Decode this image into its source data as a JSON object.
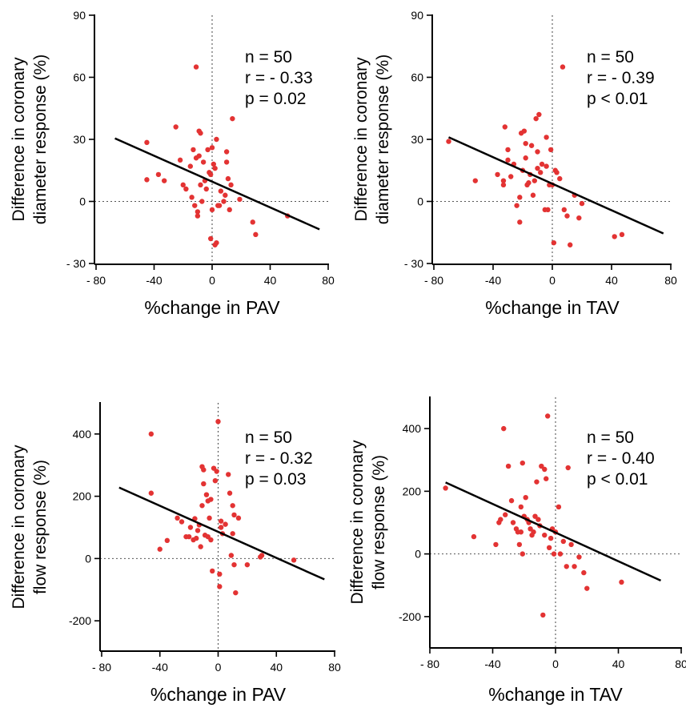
{
  "chart_data": [
    {
      "type": "scatter",
      "xlabel": "%change in PAV",
      "ylabel": [
        "Difference in coronary",
        "diameter response (%)"
      ],
      "xlim": [
        -80,
        80
      ],
      "ylim": [
        -30,
        90
      ],
      "xticks": [
        -80,
        -40,
        0,
        40,
        80
      ],
      "xtick_labels": [
        "- 80",
        "-40",
        "0",
        "40",
        "80"
      ],
      "yticks": [
        -30,
        0,
        30,
        60,
        90
      ],
      "ytick_labels": [
        "- 30",
        "0",
        "30",
        "60",
        "90"
      ],
      "stats": [
        "n = 50",
        "r = - 0.33",
        "p = 0.02"
      ],
      "fit": {
        "x": [
          -67,
          74
        ],
        "y": [
          30.5,
          -13.5
        ]
      },
      "x": [
        -45,
        -45,
        -37,
        -33,
        -25,
        -22,
        -20,
        -18,
        -15,
        -14,
        -13,
        -12,
        -11,
        -11,
        -10,
        -10,
        -9,
        -9,
        -8,
        -8,
        -7,
        -6,
        -5,
        -4,
        -3,
        -2,
        -1,
        0,
        0,
        1,
        2,
        2,
        3,
        3,
        4,
        5,
        6,
        8,
        9,
        10,
        10,
        11,
        12,
        13,
        14,
        19,
        28,
        30,
        52,
        -1
      ],
      "y": [
        28.5,
        10.5,
        13,
        10,
        36,
        20,
        8,
        6,
        17,
        2,
        25,
        -2,
        65,
        21,
        -5,
        -7,
        34,
        22,
        33,
        8,
        0,
        19,
        10,
        6,
        25,
        14,
        13,
        26,
        -4,
        18,
        16,
        -21,
        -20,
        30,
        -2,
        -2,
        5,
        0,
        3,
        24,
        19,
        11,
        -4,
        8,
        40,
        1,
        -10,
        -16,
        -7,
        -18
      ]
    },
    {
      "type": "scatter",
      "xlabel": "%change in TAV",
      "ylabel": [
        "Difference in coronary",
        "diameter response (%)"
      ],
      "xlim": [
        -80,
        80
      ],
      "ylim": [
        -30,
        90
      ],
      "xticks": [
        -80,
        -40,
        0,
        40,
        80
      ],
      "xtick_labels": [
        "- 80",
        "-40",
        "0",
        "40",
        "80"
      ],
      "yticks": [
        -30,
        0,
        30,
        60,
        90
      ],
      "ytick_labels": [
        "- 30",
        "0",
        "30",
        "60",
        "90"
      ],
      "stats": [
        "n = 50",
        "r = - 0.39",
        "p < 0.01"
      ],
      "fit": {
        "x": [
          -70,
          75
        ],
        "y": [
          31,
          -15.5
        ]
      },
      "x": [
        -70,
        -52,
        -37,
        -33,
        -33,
        -32,
        -30,
        -30,
        -28,
        -26,
        -24,
        -22,
        -22,
        -21,
        -20,
        -19,
        -18,
        -18,
        -17,
        -16,
        -15,
        -14,
        -13,
        -12,
        -11,
        -10,
        -10,
        -9,
        -8,
        -7,
        -5,
        -4,
        -4,
        -3,
        -2,
        -1,
        0,
        1,
        2,
        3,
        5,
        7,
        8,
        10,
        12,
        15,
        18,
        20,
        42,
        47
      ],
      "y": [
        29,
        10,
        13,
        10,
        8,
        36,
        25,
        20,
        12,
        18,
        -2,
        2,
        -10,
        33,
        15,
        34,
        28,
        21,
        8,
        9,
        13,
        27,
        3,
        10,
        40,
        16,
        24,
        42,
        14,
        18,
        -4,
        31,
        17,
        -4,
        8,
        25,
        8,
        -20,
        15,
        14,
        11,
        65,
        -4,
        -7,
        -21,
        3,
        -8,
        -1,
        -17,
        -16
      ]
    },
    {
      "type": "scatter",
      "xlabel": "%change in PAV",
      "ylabel": [
        "Difference in coronary",
        "flow response (%)"
      ],
      "xlim": [
        -80,
        80
      ],
      "ylim": [
        -300,
        500
      ],
      "xticks": [
        -80,
        -40,
        0,
        40,
        80
      ],
      "xtick_labels": [
        "- 80",
        "-40",
        "0",
        "40",
        "80"
      ],
      "yticks": [
        -200,
        0,
        200,
        400
      ],
      "ytick_labels": [
        "-200",
        "0",
        "200",
        "400"
      ],
      "stats": [
        "n = 50",
        "r = - 0.32",
        "p = 0.03"
      ],
      "fit": {
        "x": [
          -68,
          73
        ],
        "y": [
          228,
          -67
        ]
      },
      "x": [
        -46,
        -46,
        -40,
        -35,
        -28,
        -25,
        -22,
        -20,
        -19,
        -17,
        -16,
        -15,
        -14,
        -13,
        -12,
        -11,
        -11,
        -10,
        -10,
        -9,
        -8,
        -7,
        -7,
        -6,
        -5,
        -5,
        -4,
        -3,
        -2,
        -1,
        0,
        1,
        1,
        2,
        2,
        3,
        5,
        7,
        8,
        9,
        10,
        10,
        11,
        11,
        12,
        14,
        20,
        29,
        30,
        52
      ],
      "y": [
        400,
        210,
        30,
        58,
        130,
        118,
        70,
        70,
        100,
        60,
        128,
        65,
        90,
        108,
        38,
        295,
        170,
        285,
        240,
        75,
        205,
        185,
        70,
        130,
        190,
        60,
        -40,
        290,
        250,
        280,
        440,
        -90,
        -50,
        120,
        100,
        80,
        110,
        270,
        210,
        10,
        170,
        80,
        140,
        -20,
        -110,
        130,
        -20,
        5,
        10,
        -5
      ]
    },
    {
      "type": "scatter",
      "xlabel": "%change in TAV",
      "ylabel": [
        "Difference in coronary",
        "flow response (%)"
      ],
      "xlim": [
        -80,
        80
      ],
      "ylim": [
        -300,
        500
      ],
      "xticks": [
        -80,
        -40,
        0,
        40,
        80
      ],
      "xtick_labels": [
        "- 80",
        "-40",
        "0",
        "40",
        "80"
      ],
      "yticks": [
        -200,
        0,
        200,
        400
      ],
      "ytick_labels": [
        "-200",
        "0",
        "200",
        "400"
      ],
      "stats": [
        "n = 50",
        "r = - 0.40",
        "p < 0.01"
      ],
      "fit": {
        "x": [
          -70,
          67
        ],
        "y": [
          228,
          -85
        ]
      },
      "x": [
        -70,
        -52,
        -38,
        -36,
        -35,
        -33,
        -32,
        -30,
        -28,
        -27,
        -25,
        -24,
        -23,
        -22,
        -22,
        -21,
        -21,
        -20,
        -19,
        -18,
        -17,
        -16,
        -15,
        -14,
        -13,
        -12,
        -11,
        -10,
        -9,
        -8,
        -7,
        -7,
        -6,
        -5,
        -4,
        -3,
        -2,
        -1,
        0,
        2,
        3,
        5,
        7,
        8,
        10,
        12,
        15,
        18,
        20,
        42
      ],
      "y": [
        210,
        55,
        30,
        100,
        110,
        400,
        125,
        280,
        170,
        100,
        80,
        70,
        30,
        150,
        70,
        290,
        0,
        120,
        180,
        110,
        100,
        80,
        60,
        70,
        120,
        230,
        110,
        90,
        280,
        -195,
        60,
        270,
        240,
        440,
        20,
        50,
        80,
        0,
        70,
        150,
        0,
        40,
        -40,
        275,
        30,
        -40,
        -10,
        -60,
        -110,
        -90
      ]
    }
  ]
}
